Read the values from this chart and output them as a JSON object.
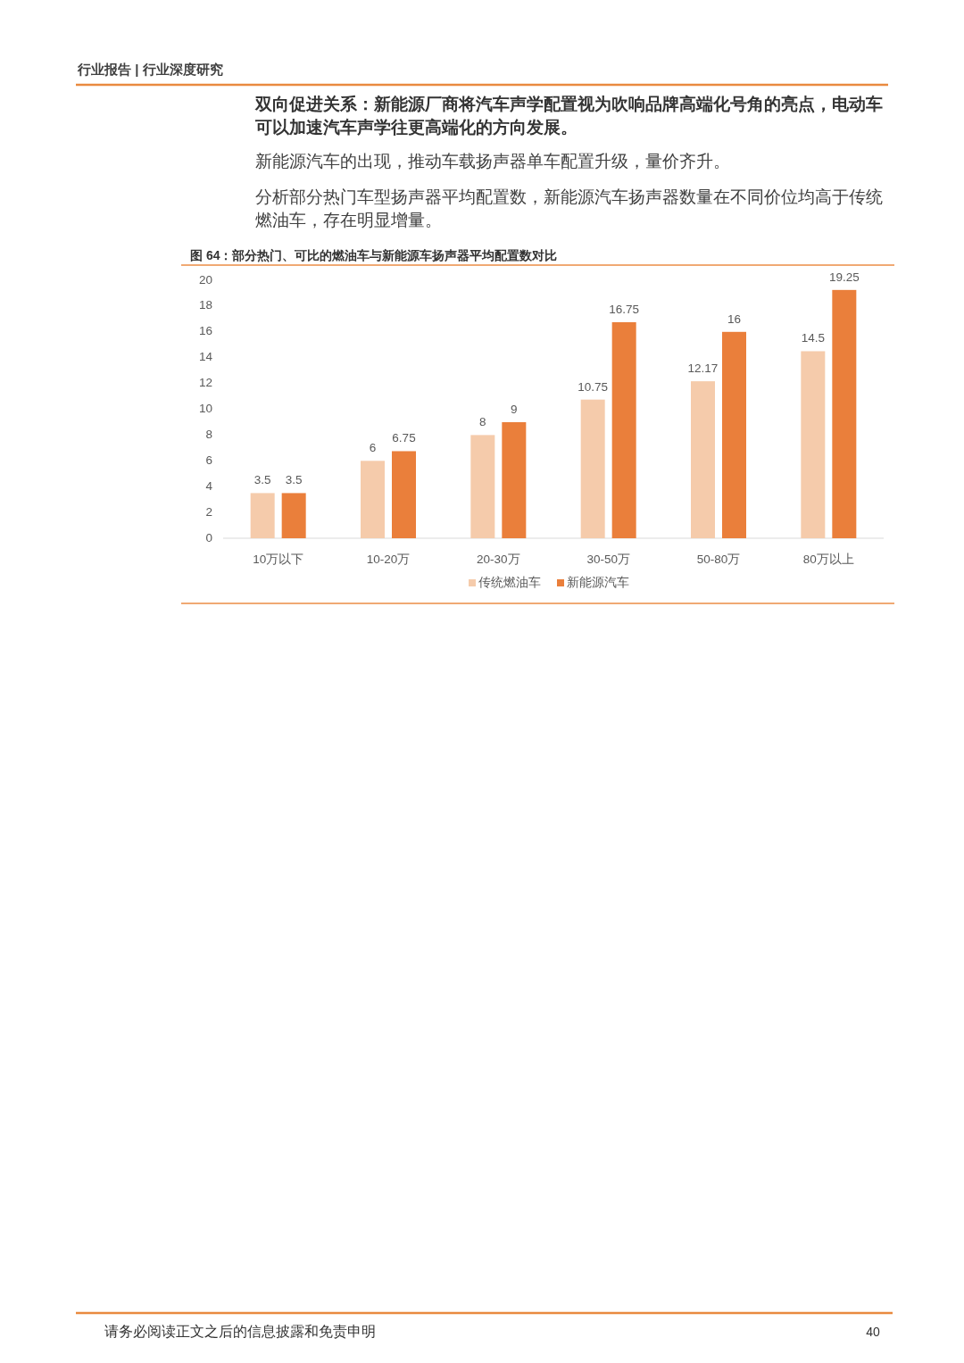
{
  "chart_data": {
    "type": "bar",
    "title": "图 64：部分热门、可比的燃油车与新能源车扬声器平均配置数对比",
    "categories": [
      "10万以下",
      "10-20万",
      "20-30万",
      "30-50万",
      "50-80万",
      "80万以上"
    ],
    "series": [
      {
        "name": "传统燃油车",
        "color": "#f5cbab",
        "values": [
          3.5,
          6,
          8,
          10.75,
          12.17,
          14.5
        ]
      },
      {
        "name": "新能源汽车",
        "color": "#ea7f3b",
        "values": [
          3.5,
          6.75,
          9,
          16.75,
          16,
          19.25
        ]
      }
    ],
    "ylim": [
      0,
      20
    ],
    "yticks": [
      0,
      2,
      4,
      6,
      8,
      10,
      12,
      14,
      16,
      18,
      20
    ],
    "data_labels": true,
    "legend": "bottom",
    "annotations": [
      "行业报告 | 行业深度研究",
      "双向促进关系：新能源厂商将汽车声学配置视为吹响品牌高端化号角的亮点，电动车可以加速汽车声学往更高端化的方向发展。",
      "新能源汽车的出现，推动车载扬声器单车配置升级，量价齐升。",
      "分析部分热门车型扬声器平均配置数，新能源汽车扬声器数量在不同价位均高于传统燃油车，存在明显增量。",
      "请务必阅读正文之后的信息披露和免责申明",
      "40"
    ]
  }
}
